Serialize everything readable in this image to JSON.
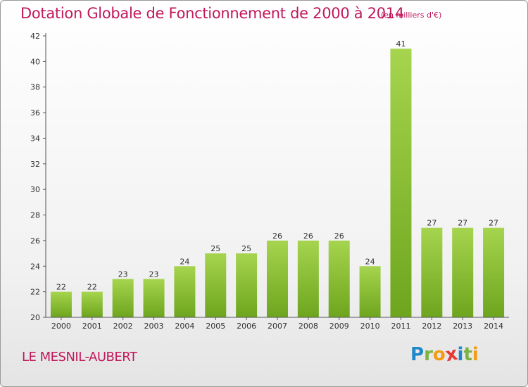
{
  "chart_data": {
    "type": "bar",
    "title": "Dotation Globale de Fonctionnement de 2000 à 2014",
    "subtitle": "(en milliers d'€)",
    "categories": [
      "2000",
      "2001",
      "2002",
      "2003",
      "2004",
      "2005",
      "2006",
      "2007",
      "2008",
      "2009",
      "2010",
      "2011",
      "2012",
      "2013",
      "2014"
    ],
    "values": [
      22,
      22,
      23,
      23,
      24,
      25,
      25,
      26,
      26,
      26,
      24,
      41,
      27,
      27,
      27
    ],
    "ylim": [
      20,
      42
    ],
    "yticks": [
      20,
      22,
      24,
      26,
      28,
      30,
      32,
      34,
      36,
      38,
      40,
      42
    ],
    "xlabel": "",
    "ylabel": "",
    "grid": false,
    "colors": {
      "bar_light": "#a6d44e",
      "bar_dark": "#6ea51e",
      "axis": "#555555"
    }
  },
  "footer": {
    "commune": "LE MESNIL-AUBERT",
    "logo_letters": [
      "P",
      "r",
      "o",
      "x",
      "i",
      "t",
      "i"
    ],
    "logo_colors": [
      "#1e88c8",
      "#7cb342",
      "#f39c12",
      "#e53935",
      "#1e88c8",
      "#7cb342",
      "#f39c12"
    ]
  }
}
